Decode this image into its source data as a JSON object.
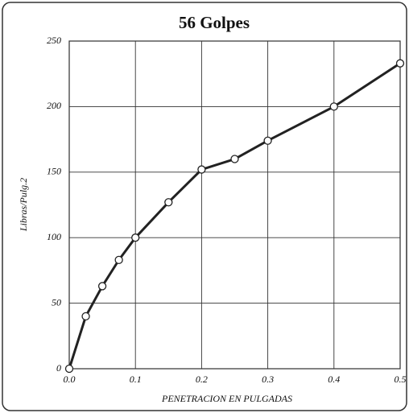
{
  "chart_data": {
    "type": "line",
    "title": "56 Golpes",
    "x_label": "PENETRACION EN PULGADAS",
    "y_label": "Libras/Pulg.2",
    "x": [
      0,
      0.025,
      0.05,
      0.075,
      0.1,
      0.15,
      0.2,
      0.25,
      0.3,
      0.4,
      0.5
    ],
    "series": [
      {
        "name": "56 Golpes",
        "color": "#222222",
        "values": [
          0,
          40,
          63,
          83,
          100,
          127,
          152,
          160,
          174,
          200,
          233
        ]
      }
    ],
    "xlim": [
      0,
      0.5
    ],
    "xticks": [
      {
        "value": 0,
        "label": "0.0"
      },
      0.1,
      0.2,
      0.3,
      0.4,
      0.5
    ],
    "ylim": [
      0,
      250
    ],
    "yticks": [
      0,
      50,
      100,
      150,
      200,
      250
    ],
    "grid": true
  }
}
